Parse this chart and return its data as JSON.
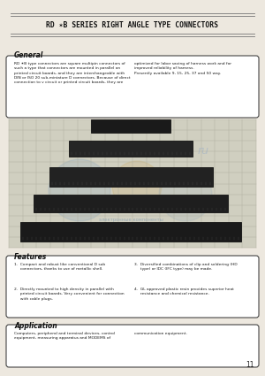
{
  "bg_color": "#ede8df",
  "title": "RD ✶B SERIES RIGHT ANGLE TYPE CONNECTORS",
  "section_general": "General",
  "general_text_left": "RD ✶B type connectors are square multipin connectors of\nsuch a type that connectors are mounted in parallel on\nprinted circuit boards, and they are interchangeable with\nDIN or ISO 20 sub-miniature D connectors. Because of direct\nconnection to v circuit or printed circuit boards, they are",
  "general_text_right": "optimized for labor saving of harness work and for\nimproved reliability of harness.\nPresently available 9, 15, 25, 37 and 50 way.",
  "section_features": "Features",
  "features_left": [
    "1.  Compact and robust like conventional D sub\n     connectors, thanks to use of metallic shell.",
    "2.  Directly mounted to high density in parallel with\n     printed circuit boards. Very convenient for connection\n     with cable plugs."
  ],
  "features_right": [
    "3.  Diversified combinations of clip and soldering (HD\n     type) or IDC (IFC type) may be made.",
    "4.  GL approved plastic resin provides superior heat\n     resistance and chemical resistance."
  ],
  "section_application": "Application",
  "app_text_left": "Computers, peripheral and terminal devices, control\nequipment, measuring apparatus and MODEMS of",
  "app_text_right": "communication equipment.",
  "page_number": "11",
  "box_facecolor": "#ffffff",
  "box_edgecolor": "#444444",
  "text_color": "#1a1a1a",
  "grid_color": "#b0b0a0",
  "grid_bg": "#c5c5b5",
  "photo_bg": "#d0cfc0"
}
